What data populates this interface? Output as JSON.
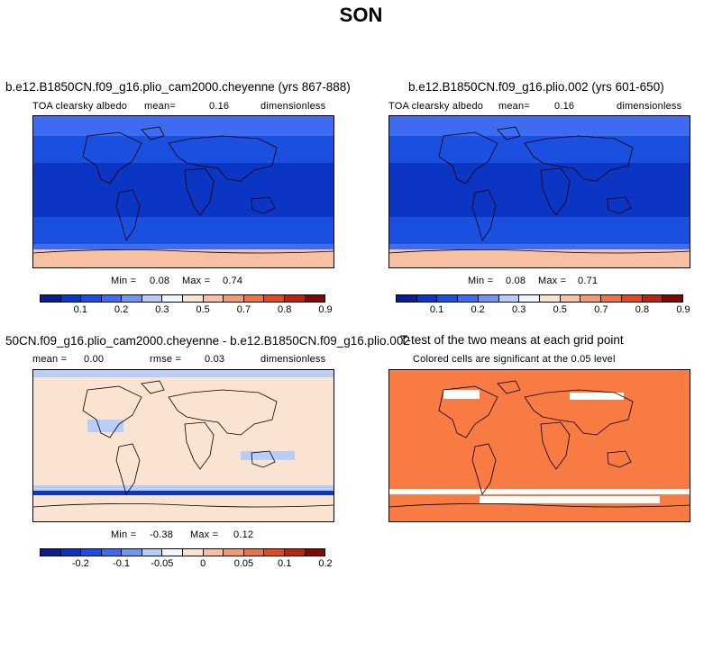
{
  "season": "SON",
  "panels": {
    "p1": {
      "title": "b.e12.B1850CN.f09_g16.plio_cam2000.cheyenne (yrs 867-888)",
      "variable": "TOA clearsky albedo",
      "mean_label": "mean=",
      "mean_value": "0.16",
      "units": "dimensionless",
      "min_label": "Min =",
      "min_value": "0.08",
      "max_label": "Max =",
      "max_value": "0.74"
    },
    "p2": {
      "title": "b.e12.B1850CN.f09_g16.plio.002 (yrs 601-650)",
      "variable": "TOA clearsky albedo",
      "mean_label": "mean=",
      "mean_value": "0.16",
      "units": "dimensionless",
      "min_label": "Min =",
      "min_value": "0.08",
      "max_label": "Max =",
      "max_value": "0.71"
    },
    "p3": {
      "title": "50CN.f09_g16.plio_cam2000.cheyenne - b.e12.B1850CN.f09_g16.plio.002",
      "mean_label": "mean =",
      "mean_value": "0.00",
      "rmse_label": "rmse =",
      "rmse_value": "0.03",
      "units": "dimensionless",
      "min_label": "Min =",
      "min_value": "-0.38",
      "max_label": "Max =",
      "max_value": "0.12"
    },
    "p4": {
      "title": "T-test of the two means at each grid point",
      "subtitle": "Colored cells are significant at the 0.05 level"
    }
  },
  "colorbar_abs": {
    "colors": [
      "#0a1f8f",
      "#0b35c2",
      "#1a4fe0",
      "#3d6cf0",
      "#6f96f5",
      "#b8cdf7",
      "#f2f6fc",
      "#fbe3d2",
      "#f7c0a2",
      "#f29a76",
      "#ec7247",
      "#e04a1f",
      "#b82610",
      "#7f0a05"
    ],
    "ticks": [
      "0.1",
      "0.2",
      "0.3",
      "0.5",
      "0.7",
      "0.8",
      "0.9"
    ]
  },
  "colorbar_diff": {
    "colors": [
      "#0a1f8f",
      "#0b35c2",
      "#1a4fe0",
      "#3d6cf0",
      "#6f96f5",
      "#b8cdf7",
      "#f2f6fc",
      "#fbe3d2",
      "#f7c0a2",
      "#f29a76",
      "#ec7247",
      "#e04a1f",
      "#b82610",
      "#7f0a05"
    ],
    "ticks": [
      "-0.2",
      "-0.1",
      "-0.05",
      "0",
      "0.05",
      "0.1",
      "0.2"
    ]
  },
  "map_colors": {
    "ocean_deep": "#0b35c2",
    "ocean_mid": "#1a4fe0",
    "ocean_light": "#3d6cf0",
    "ice": "#f7c0a2",
    "ice_light": "#fbe3d2",
    "diff_base": "#fbe3d2",
    "diff_neg": "#b8cdf7",
    "diff_strong": "#0b35c2",
    "ttest_fill": "#f87b44"
  }
}
